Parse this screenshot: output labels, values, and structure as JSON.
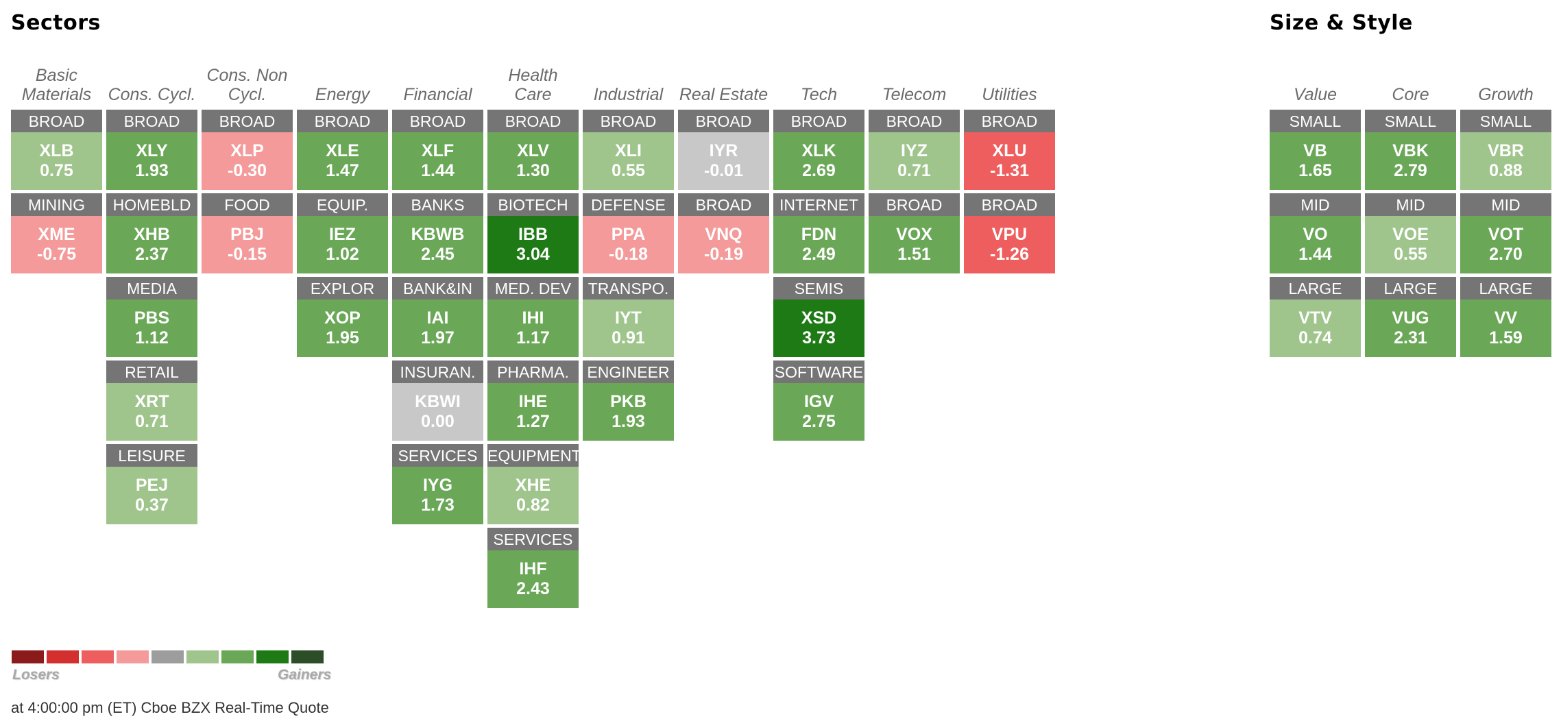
{
  "sectors_title": "Sectors",
  "size_style_title": "Size & Style",
  "colors": {
    "strong_loss": "#8b1a1a",
    "loss": "#d32f2f",
    "mid_loss": "#ee5e5e",
    "small_loss": "#f49a9a",
    "flat": "#c8c8c8",
    "small_gain": "#9fc58c",
    "gain": "#6aa757",
    "strong_gain": "#1e7a14",
    "max_gain": "#2d4d28",
    "label_bg": "#757575"
  },
  "sectors": [
    {
      "head1": "Basic",
      "head2": "Materials",
      "tiles": [
        {
          "label": "BROAD",
          "ticker": "XLB",
          "change": "0.75",
          "color": "#9fc58c"
        },
        {
          "label": "MINING",
          "ticker": "XME",
          "change": "-0.75",
          "color": "#f49a9a"
        }
      ]
    },
    {
      "head1": "",
      "head2": "Cons. Cycl.",
      "tiles": [
        {
          "label": "BROAD",
          "ticker": "XLY",
          "change": "1.93",
          "color": "#6aa757"
        },
        {
          "label": "HOMEBLD",
          "ticker": "XHB",
          "change": "2.37",
          "color": "#6aa757"
        },
        {
          "label": "MEDIA",
          "ticker": "PBS",
          "change": "1.12",
          "color": "#6aa757"
        },
        {
          "label": "RETAIL",
          "ticker": "XRT",
          "change": "0.71",
          "color": "#9fc58c"
        },
        {
          "label": "LEISURE",
          "ticker": "PEJ",
          "change": "0.37",
          "color": "#9fc58c"
        }
      ]
    },
    {
      "head1": "Cons. Non",
      "head2": "Cycl.",
      "tiles": [
        {
          "label": "BROAD",
          "ticker": "XLP",
          "change": "-0.30",
          "color": "#f49a9a"
        },
        {
          "label": "FOOD",
          "ticker": "PBJ",
          "change": "-0.15",
          "color": "#f49a9a"
        }
      ]
    },
    {
      "head1": "",
      "head2": "Energy",
      "tiles": [
        {
          "label": "BROAD",
          "ticker": "XLE",
          "change": "1.47",
          "color": "#6aa757"
        },
        {
          "label": "EQUIP.",
          "ticker": "IEZ",
          "change": "1.02",
          "color": "#6aa757"
        },
        {
          "label": "EXPLOR",
          "ticker": "XOP",
          "change": "1.95",
          "color": "#6aa757"
        }
      ]
    },
    {
      "head1": "",
      "head2": "Financial",
      "tiles": [
        {
          "label": "BROAD",
          "ticker": "XLF",
          "change": "1.44",
          "color": "#6aa757"
        },
        {
          "label": "BANKS",
          "ticker": "KBWB",
          "change": "2.45",
          "color": "#6aa757"
        },
        {
          "label": "BANK&IN",
          "ticker": "IAI",
          "change": "1.97",
          "color": "#6aa757"
        },
        {
          "label": "INSURAN.",
          "ticker": "KBWI",
          "change": "0.00",
          "color": "#c8c8c8"
        },
        {
          "label": "SERVICES",
          "ticker": "IYG",
          "change": "1.73",
          "color": "#6aa757"
        }
      ]
    },
    {
      "head1": "Health",
      "head2": "Care",
      "tiles": [
        {
          "label": "BROAD",
          "ticker": "XLV",
          "change": "1.30",
          "color": "#6aa757"
        },
        {
          "label": "BIOTECH",
          "ticker": "IBB",
          "change": "3.04",
          "color": "#1e7a14"
        },
        {
          "label": "MED. DEV",
          "ticker": "IHI",
          "change": "1.17",
          "color": "#6aa757"
        },
        {
          "label": "PHARMA.",
          "ticker": "IHE",
          "change": "1.27",
          "color": "#6aa757"
        },
        {
          "label": "EQUIPMENT",
          "ticker": "XHE",
          "change": "0.82",
          "color": "#9fc58c"
        },
        {
          "label": "SERVICES",
          "ticker": "IHF",
          "change": "2.43",
          "color": "#6aa757"
        }
      ]
    },
    {
      "head1": "",
      "head2": "Industrial",
      "tiles": [
        {
          "label": "BROAD",
          "ticker": "XLI",
          "change": "0.55",
          "color": "#9fc58c"
        },
        {
          "label": "DEFENSE",
          "ticker": "PPA",
          "change": "-0.18",
          "color": "#f49a9a"
        },
        {
          "label": "TRANSPO.",
          "ticker": "IYT",
          "change": "0.91",
          "color": "#9fc58c"
        },
        {
          "label": "ENGINEER",
          "ticker": "PKB",
          "change": "1.93",
          "color": "#6aa757"
        }
      ]
    },
    {
      "head1": "",
      "head2": "Real Estate",
      "tiles": [
        {
          "label": "BROAD",
          "ticker": "IYR",
          "change": "-0.01",
          "color": "#c8c8c8"
        },
        {
          "label": "BROAD",
          "ticker": "VNQ",
          "change": "-0.19",
          "color": "#f49a9a"
        }
      ]
    },
    {
      "head1": "",
      "head2": "Tech",
      "tiles": [
        {
          "label": "BROAD",
          "ticker": "XLK",
          "change": "2.69",
          "color": "#6aa757"
        },
        {
          "label": "INTERNET",
          "ticker": "FDN",
          "change": "2.49",
          "color": "#6aa757"
        },
        {
          "label": "SEMIS",
          "ticker": "XSD",
          "change": "3.73",
          "color": "#1e7a14"
        },
        {
          "label": "SOFTWARE",
          "ticker": "IGV",
          "change": "2.75",
          "color": "#6aa757"
        }
      ]
    },
    {
      "head1": "",
      "head2": "Telecom",
      "tiles": [
        {
          "label": "BROAD",
          "ticker": "IYZ",
          "change": "0.71",
          "color": "#9fc58c"
        },
        {
          "label": "BROAD",
          "ticker": "VOX",
          "change": "1.51",
          "color": "#6aa757"
        }
      ]
    },
    {
      "head1": "",
      "head2": "Utilities",
      "tiles": [
        {
          "label": "BROAD",
          "ticker": "XLU",
          "change": "-1.31",
          "color": "#ee5e5e"
        },
        {
          "label": "BROAD",
          "ticker": "VPU",
          "change": "-1.26",
          "color": "#ee5e5e"
        }
      ]
    }
  ],
  "styles": [
    {
      "head1": "",
      "head2": "Value",
      "tiles": [
        {
          "label": "SMALL",
          "ticker": "VB",
          "change": "1.65",
          "color": "#6aa757"
        },
        {
          "label": "MID",
          "ticker": "VO",
          "change": "1.44",
          "color": "#6aa757"
        },
        {
          "label": "LARGE",
          "ticker": "VTV",
          "change": "0.74",
          "color": "#9fc58c"
        }
      ]
    },
    {
      "head1": "",
      "head2": "Core",
      "tiles": [
        {
          "label": "SMALL",
          "ticker": "VBK",
          "change": "2.79",
          "color": "#6aa757"
        },
        {
          "label": "MID",
          "ticker": "VOE",
          "change": "0.55",
          "color": "#9fc58c"
        },
        {
          "label": "LARGE",
          "ticker": "VUG",
          "change": "2.31",
          "color": "#6aa757"
        }
      ]
    },
    {
      "head1": "",
      "head2": "Growth",
      "tiles": [
        {
          "label": "SMALL",
          "ticker": "VBR",
          "change": "0.88",
          "color": "#9fc58c"
        },
        {
          "label": "MID",
          "ticker": "VOT",
          "change": "2.70",
          "color": "#6aa757"
        },
        {
          "label": "LARGE",
          "ticker": "VV",
          "change": "1.59",
          "color": "#6aa757"
        }
      ]
    }
  ],
  "legend": {
    "losers": "Losers",
    "gainers": "Gainers",
    "swatches": [
      "#8b1a1a",
      "#d32f2f",
      "#ee5e5e",
      "#f49a9a",
      "#9d9d9d",
      "#9fc58c",
      "#6aa757",
      "#1e7a14",
      "#2d4d28"
    ]
  },
  "footer": "at 4:00:00 pm (ET) Cboe BZX Real-Time Quote"
}
